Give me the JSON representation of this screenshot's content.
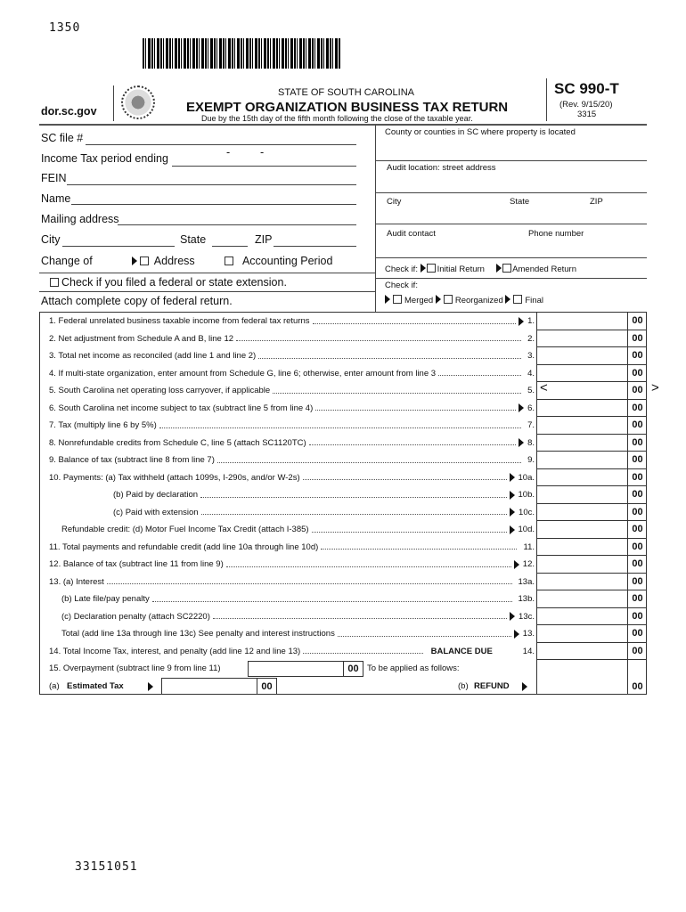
{
  "header": {
    "top_code": "1350",
    "site": "dor.sc.gov",
    "state": "STATE OF SOUTH CAROLINA",
    "title": "EXEMPT ORGANIZATION BUSINESS TAX RETURN",
    "due": "Due by the 15th day of the fifth month following the close of the taxable year.",
    "form": "SC 990-T",
    "rev": "(Rev. 9/15/20)",
    "code": "3315"
  },
  "left": {
    "sc_file": "SC file #",
    "period": "Income Tax period ending",
    "dash": "-",
    "fein": "FEIN",
    "name": "Name",
    "mailing": "Mailing address",
    "city": "City",
    "state": "State",
    "zip": "ZIP",
    "change_of": "Change of",
    "address": "Address",
    "accounting": "Accounting Period",
    "extension": "Check if you filed a federal or state extension.",
    "attach": "Attach complete copy of federal return."
  },
  "right": {
    "county": "County or counties in SC where property is located",
    "audit_loc": "Audit location: street address",
    "city": "City",
    "state": "State",
    "zip": "ZIP",
    "audit_contact": "Audit contact",
    "phone": "Phone number",
    "check_if": "Check if:",
    "initial": "Initial Return",
    "amended": "Amended Return",
    "check_if2": "Check if:",
    "merged": "Merged",
    "reorganized": "Reorganized",
    "final": "Final"
  },
  "lines": [
    {
      "label": "1. Federal unrelated business taxable income from federal tax returns",
      "num": "1.",
      "arrow": true,
      "indent": 0
    },
    {
      "label": "2. Net adjustment from Schedule A and B, line 12",
      "num": "2.",
      "arrow": false,
      "indent": 0
    },
    {
      "label": "3. Total net income as reconciled (add line 1 and line 2)",
      "num": "3.",
      "arrow": false,
      "indent": 0
    },
    {
      "label": "4. If multi-state organization, enter amount from Schedule G, line 6; otherwise, enter amount from line 3",
      "num": "4.",
      "arrow": false,
      "indent": 0
    },
    {
      "label": "5. South Carolina net operating loss carryover, if applicable",
      "num": "5.",
      "arrow": false,
      "indent": 0,
      "brackets": true
    },
    {
      "label": "6. South Carolina net income subject to tax (subtract line 5 from line 4)",
      "num": "6.",
      "arrow": true,
      "indent": 0
    },
    {
      "label": "7. Tax (multiply line 6 by 5%)",
      "num": "7.",
      "arrow": false,
      "indent": 0
    },
    {
      "label": "8. Nonrefundable credits from Schedule C, line 5 (attach SC1120TC)",
      "num": "8.",
      "arrow": true,
      "indent": 0
    },
    {
      "label": "9. Balance of tax (subtract line 8 from line 7)",
      "num": "9.",
      "arrow": false,
      "indent": 0
    },
    {
      "label": "10. Payments:  (a) Tax withheld (attach 1099s, I-290s, and/or W-2s)",
      "num": "10a.",
      "arrow": true,
      "indent": 0
    },
    {
      "label": "(b) Paid by declaration",
      "num": "10b.",
      "arrow": true,
      "indent": 72
    },
    {
      "label": "(c) Paid with extension",
      "num": "10c.",
      "arrow": true,
      "indent": 72
    },
    {
      "label": "Refundable credit: (d) Motor Fuel Income Tax Credit (attach I-385)",
      "num": "10d.",
      "arrow": true,
      "indent": 14
    },
    {
      "label": "11. Total payments and refundable credit (add line 10a through line 10d)",
      "num": "11.",
      "arrow": false,
      "indent": 0
    },
    {
      "label": "12. Balance of tax (subtract line 11 from line 9)",
      "num": "12.",
      "arrow": true,
      "indent": 0
    },
    {
      "label": "13. (a) Interest",
      "num": "13a.",
      "arrow": false,
      "indent": 0
    },
    {
      "label": "(b) Late file/pay penalty",
      "num": "13b.",
      "arrow": false,
      "indent": 14
    },
    {
      "label": "(c) Declaration penalty (attach SC2220)",
      "num": "13c.",
      "arrow": true,
      "indent": 14
    },
    {
      "label": "Total (add line 13a through line 13c) See penalty and interest instructions",
      "num": "13.",
      "arrow": true,
      "indent": 14
    },
    {
      "label": "14. Total Income Tax, interest, and penalty (add line 12 and line 13)",
      "num": "14.",
      "arrow": false,
      "indent": 0,
      "extra": "BALANCE DUE"
    }
  ],
  "line15": {
    "label": "15. Overpayment (subtract line 9 from line 11)",
    "applied": "To be applied as follows:",
    "est_prefix": "(a)",
    "est": "Estimated Tax",
    "ref_prefix": "(b)",
    "refund": "REFUND"
  },
  "cents": "00",
  "bracket_open": "<",
  "bracket_close": ">",
  "footer_code": "33151051"
}
